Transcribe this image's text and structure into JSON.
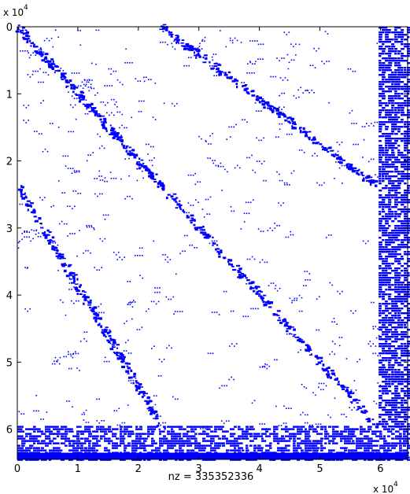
{
  "chart_data": {
    "type": "heatmap",
    "subtype": "sparsity-pattern (spy plot)",
    "title": "",
    "xlabel": "nz = 335352336",
    "ylabel": "",
    "x_scale_label": "x 10",
    "x_scale_exponent": "4",
    "y_scale_label": "x 10",
    "y_scale_exponent": "4",
    "x_ticks": [
      "0",
      "1",
      "2",
      "3",
      "4",
      "5",
      "6"
    ],
    "y_ticks": [
      "0",
      "1",
      "2",
      "3",
      "4",
      "5",
      "6"
    ],
    "x_tick_values": [
      0,
      1,
      2,
      3,
      4,
      5,
      6
    ],
    "y_tick_values": [
      0,
      1,
      2,
      3,
      4,
      5,
      6
    ],
    "xlim": [
      0,
      6.45
    ],
    "ylim": [
      0,
      6.45
    ],
    "y_axis_reversed": true,
    "marker_color": "#0000ff",
    "axes_color": "#000000",
    "nz": 335352336,
    "blocks": [
      {
        "name": "diagonal-band-1",
        "x": [
          0.0,
          2.38
        ],
        "y": [
          0.0,
          2.38
        ]
      },
      {
        "name": "diagonal-band-2",
        "x": [
          2.38,
          5.95
        ],
        "y": [
          0.0,
          2.38
        ]
      },
      {
        "name": "diagonal-band-3",
        "x": [
          0.0,
          2.38
        ],
        "y": [
          2.38,
          5.95
        ]
      },
      {
        "name": "diagonal-band-4",
        "x": [
          2.38,
          5.95
        ],
        "y": [
          2.38,
          5.95
        ]
      }
    ],
    "dense_columns_x": [
      5.97,
      6.45
    ],
    "dense_rows_y": [
      5.95,
      6.45
    ]
  }
}
